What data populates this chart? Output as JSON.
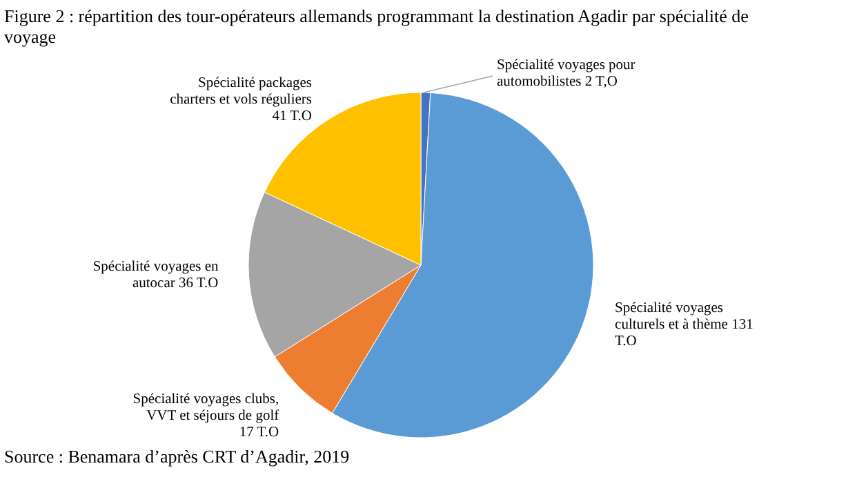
{
  "chart_data": {
    "type": "pie",
    "title": "Figure 2 : répartition des tour-opérateurs allemands programmant la destination Agadir par spécialité de voyage",
    "categories": [
      "Spécialité voyages  pour\nautomobilistes 2 T,O",
      "Spécialité voyages\nculturels et à thème 131\nT.O",
      "Spécialité voyages clubs,\nVVT et séjours de golf\n17 T.O",
      "Spécialité voyages en\nautocar 36 T.O",
      "Spécialité packages\ncharters et vols réguliers\n41 T.O"
    ],
    "values": [
      2,
      131,
      17,
      36,
      41
    ],
    "colors": [
      "#4472c4",
      "#5b9bd5",
      "#ed7d31",
      "#a5a5a5",
      "#ffc000"
    ],
    "annotations": [
      "Source : Benamara d’après CRT d’Agadir, 2019"
    ]
  }
}
